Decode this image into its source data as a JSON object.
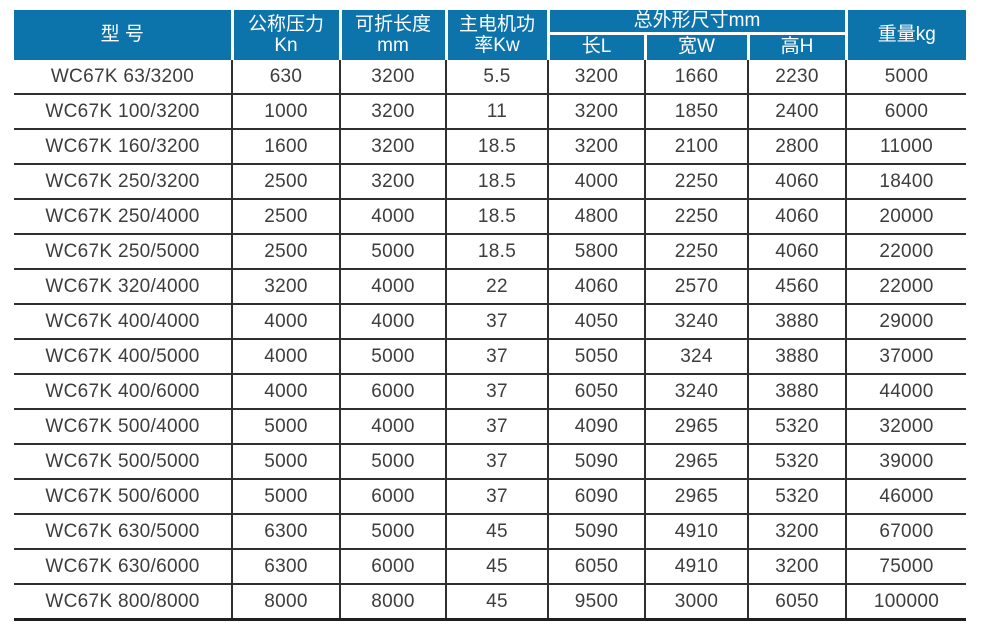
{
  "page": {
    "background_color": "#ffffff",
    "accent_color": "#0d74ab",
    "text_color": "#3d3d3d"
  },
  "table": {
    "header": {
      "model": "型 号",
      "pressure": "公称压力\nKn",
      "fold_length": "可折长度\nmm",
      "motor_power": "主电机功\n率Kw",
      "dimensions_group": "总外形尺寸mm",
      "dim_length": "长L",
      "dim_width": "宽W",
      "dim_height": "高H",
      "weight": "重量kg"
    },
    "rows": [
      {
        "model": "WC67K 63/3200",
        "pressure": "630",
        "fold_length": "3200",
        "motor_power": "5.5",
        "dim_l": "3200",
        "dim_w": "1660",
        "dim_h": "2230",
        "weight": "5000"
      },
      {
        "model": "WC67K 100/3200",
        "pressure": "1000",
        "fold_length": "3200",
        "motor_power": "11",
        "dim_l": "3200",
        "dim_w": "1850",
        "dim_h": "2400",
        "weight": "6000"
      },
      {
        "model": "WC67K 160/3200",
        "pressure": "1600",
        "fold_length": "3200",
        "motor_power": "18.5",
        "dim_l": "3200",
        "dim_w": "2100",
        "dim_h": "2800",
        "weight": "11000"
      },
      {
        "model": "WC67K 250/3200",
        "pressure": "2500",
        "fold_length": "3200",
        "motor_power": "18.5",
        "dim_l": "4000",
        "dim_w": "2250",
        "dim_h": "4060",
        "weight": "18400"
      },
      {
        "model": "WC67K 250/4000",
        "pressure": "2500",
        "fold_length": "4000",
        "motor_power": "18.5",
        "dim_l": "4800",
        "dim_w": "2250",
        "dim_h": "4060",
        "weight": "20000"
      },
      {
        "model": "WC67K 250/5000",
        "pressure": "2500",
        "fold_length": "5000",
        "motor_power": "18.5",
        "dim_l": "5800",
        "dim_w": "2250",
        "dim_h": "4060",
        "weight": "22000"
      },
      {
        "model": "WC67K 320/4000",
        "pressure": "3200",
        "fold_length": "4000",
        "motor_power": "22",
        "dim_l": "4060",
        "dim_w": "2570",
        "dim_h": "4560",
        "weight": "22000"
      },
      {
        "model": "WC67K 400/4000",
        "pressure": "4000",
        "fold_length": "4000",
        "motor_power": "37",
        "dim_l": "4050",
        "dim_w": "3240",
        "dim_h": "3880",
        "weight": "29000"
      },
      {
        "model": "WC67K 400/5000",
        "pressure": "4000",
        "fold_length": "5000",
        "motor_power": "37",
        "dim_l": "5050",
        "dim_w": "324",
        "dim_h": "3880",
        "weight": "37000"
      },
      {
        "model": "WC67K 400/6000",
        "pressure": "4000",
        "fold_length": "6000",
        "motor_power": "37",
        "dim_l": "6050",
        "dim_w": "3240",
        "dim_h": "3880",
        "weight": "44000"
      },
      {
        "model": "WC67K 500/4000",
        "pressure": "5000",
        "fold_length": "4000",
        "motor_power": "37",
        "dim_l": "4090",
        "dim_w": "2965",
        "dim_h": "5320",
        "weight": "32000"
      },
      {
        "model": "WC67K 500/5000",
        "pressure": "5000",
        "fold_length": "5000",
        "motor_power": "37",
        "dim_l": "5090",
        "dim_w": "2965",
        "dim_h": "5320",
        "weight": "39000"
      },
      {
        "model": "WC67K 500/6000",
        "pressure": "5000",
        "fold_length": "6000",
        "motor_power": "37",
        "dim_l": "6090",
        "dim_w": "2965",
        "dim_h": "5320",
        "weight": "46000"
      },
      {
        "model": "WC67K 630/5000",
        "pressure": "6300",
        "fold_length": "5000",
        "motor_power": "45",
        "dim_l": "5090",
        "dim_w": "4910",
        "dim_h": "3200",
        "weight": "67000"
      },
      {
        "model": "WC67K 630/6000",
        "pressure": "6300",
        "fold_length": "6000",
        "motor_power": "45",
        "dim_l": "6050",
        "dim_w": "4910",
        "dim_h": "3200",
        "weight": "75000"
      },
      {
        "model": "WC67K 800/8000",
        "pressure": "8000",
        "fold_length": "8000",
        "motor_power": "45",
        "dim_l": "9500",
        "dim_w": "3000",
        "dim_h": "6050",
        "weight": "100000"
      }
    ]
  }
}
